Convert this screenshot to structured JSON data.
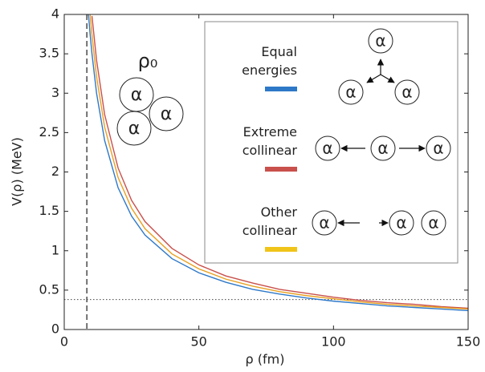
{
  "chart_data": {
    "type": "line",
    "x_label": "ρ (fm)",
    "y_label": "V(ρ) (MeV)",
    "x": [
      9,
      9.6,
      10.3,
      12,
      15,
      20,
      25,
      30,
      40,
      50,
      60,
      70,
      80,
      90,
      100,
      110,
      120,
      130,
      140,
      150
    ],
    "series": [
      {
        "name": "Equal energies",
        "color": "#2e78c8",
        "values": [
          4.0,
          3.75,
          3.5,
          3.0,
          2.4,
          1.8,
          1.44,
          1.2,
          0.9,
          0.72,
          0.6,
          0.51,
          0.45,
          0.4,
          0.36,
          0.33,
          0.3,
          0.28,
          0.26,
          0.24
        ]
      },
      {
        "name": "Extreme collinear",
        "color": "#c9504c",
        "values": [
          null,
          null,
          3.98,
          3.42,
          2.73,
          2.05,
          1.64,
          1.37,
          1.03,
          0.82,
          0.68,
          0.59,
          0.51,
          0.46,
          0.41,
          0.37,
          0.34,
          0.32,
          0.29,
          0.27
        ]
      },
      {
        "name": "Other collinear",
        "color": "#f0c419",
        "line_color": "#e8a020",
        "values": [
          null,
          4.0,
          3.74,
          3.21,
          2.57,
          1.93,
          1.54,
          1.28,
          0.96,
          0.77,
          0.64,
          0.55,
          0.48,
          0.43,
          0.39,
          0.35,
          0.32,
          0.3,
          0.28,
          0.26
        ]
      }
    ],
    "xlim": [
      0,
      150
    ],
    "ylim": [
      0,
      4
    ],
    "xticks": [
      0,
      50,
      100,
      150
    ],
    "yticks": [
      0,
      0.5,
      1,
      1.5,
      2,
      2.5,
      3,
      3.5,
      4
    ],
    "dashed_vline_x": 8.4,
    "dotted_hline_y": 0.38,
    "legend_corner": "upper right",
    "rho0_label": "ρ₀",
    "particle_symbol": "α"
  }
}
